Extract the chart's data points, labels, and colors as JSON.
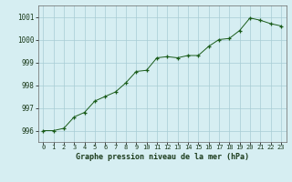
{
  "x": [
    0,
    1,
    2,
    3,
    4,
    5,
    6,
    7,
    8,
    9,
    10,
    11,
    12,
    13,
    14,
    15,
    16,
    17,
    18,
    19,
    20,
    21,
    22,
    23
  ],
  "y": [
    996.0,
    996.0,
    996.1,
    996.6,
    996.8,
    997.3,
    997.5,
    997.7,
    998.1,
    998.6,
    998.65,
    999.2,
    999.25,
    999.2,
    999.3,
    999.3,
    999.7,
    1000.0,
    1000.05,
    1000.4,
    1000.95,
    1000.85,
    1000.7,
    1000.6
  ],
  "line_color": "#1a5c1a",
  "marker_color": "#1a5c1a",
  "bg_color": "#d6eef2",
  "grid_color": "#a8ccd4",
  "title": "Graphe pression niveau de la mer (hPa)",
  "ylim": [
    995.5,
    1001.5
  ],
  "yticks": [
    996,
    997,
    998,
    999,
    1000,
    1001
  ],
  "xlim": [
    -0.5,
    23.5
  ],
  "xticks": [
    0,
    1,
    2,
    3,
    4,
    5,
    6,
    7,
    8,
    9,
    10,
    11,
    12,
    13,
    14,
    15,
    16,
    17,
    18,
    19,
    20,
    21,
    22,
    23
  ],
  "tick_fontsize": 5.0,
  "title_fontsize": 6.0,
  "ytick_fontsize": 5.5
}
